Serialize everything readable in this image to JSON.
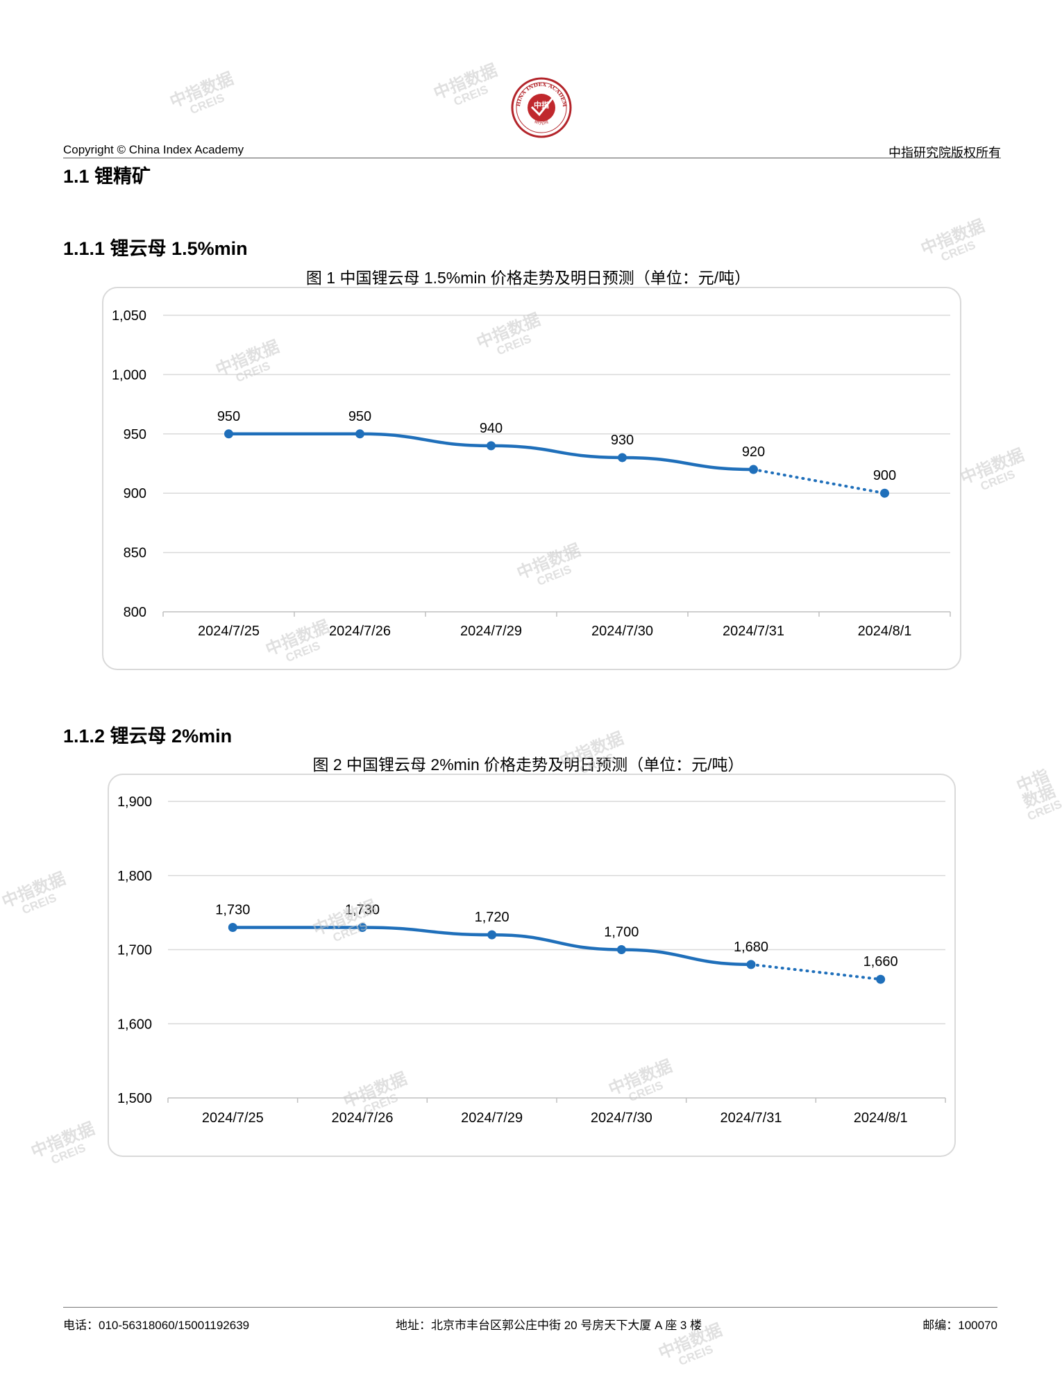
{
  "header": {
    "copyright": "Copyright © China Index Academy",
    "rights": "中指研究院版权所有",
    "logo_top_text": "CHINA INDEX ACADEMY",
    "logo_center": "中指",
    "logo_bottom_text": "研究院"
  },
  "section": {
    "title": "1.1 锂精矿"
  },
  "subsections": [
    {
      "title": "1.1.1 锂云母 1.5%min"
    },
    {
      "title": "1.1.2 锂云母 2%min"
    }
  ],
  "watermark": {
    "line1": "中指数据",
    "line2": "CREIS"
  },
  "colors": {
    "series": "#1f6fba",
    "grid": "#d9d9d9",
    "box_border": "#d9d9d9"
  },
  "chart_data": [
    {
      "type": "line",
      "title": "图 1 中国锂云母 1.5%min 价格走势及明日预测（单位：元/吨）",
      "categories": [
        "2024/7/25",
        "2024/7/26",
        "2024/7/29",
        "2024/7/30",
        "2024/7/31",
        "2024/8/1"
      ],
      "series": [
        {
          "values": [
            950,
            950,
            940,
            930,
            920,
            900
          ],
          "data_labels": [
            "950",
            "950",
            "940",
            "930",
            "920",
            "900"
          ],
          "forecast_from_index": 4
        }
      ],
      "ylim": [
        800,
        1050
      ],
      "yticks": [
        800,
        850,
        900,
        950,
        1000,
        1050
      ],
      "ytick_labels": [
        "800",
        "850",
        "900",
        "950",
        "1,000",
        "1,050"
      ],
      "grid": true,
      "legend": "none"
    },
    {
      "type": "line",
      "title": "图 2 中国锂云母 2%min 价格走势及明日预测（单位：元/吨）",
      "categories": [
        "2024/7/25",
        "2024/7/26",
        "2024/7/29",
        "2024/7/30",
        "2024/7/31",
        "2024/8/1"
      ],
      "series": [
        {
          "values": [
            1730,
            1730,
            1720,
            1700,
            1680,
            1660
          ],
          "data_labels": [
            "1,730",
            "1,730",
            "1,720",
            "1,700",
            "1,680",
            "1,660"
          ],
          "forecast_from_index": 4
        }
      ],
      "ylim": [
        1500,
        1900
      ],
      "yticks": [
        1500,
        1600,
        1700,
        1800,
        1900
      ],
      "ytick_labels": [
        "1,500",
        "1,600",
        "1,700",
        "1,800",
        "1,900"
      ],
      "grid": true,
      "legend": "none"
    }
  ],
  "footer": {
    "phone": "电话：010-56318060/15001192639",
    "address": "地址：北京市丰台区郭公庄中街 20 号房天下大厦 A 座 3 楼",
    "postcode": "邮编：100070"
  }
}
